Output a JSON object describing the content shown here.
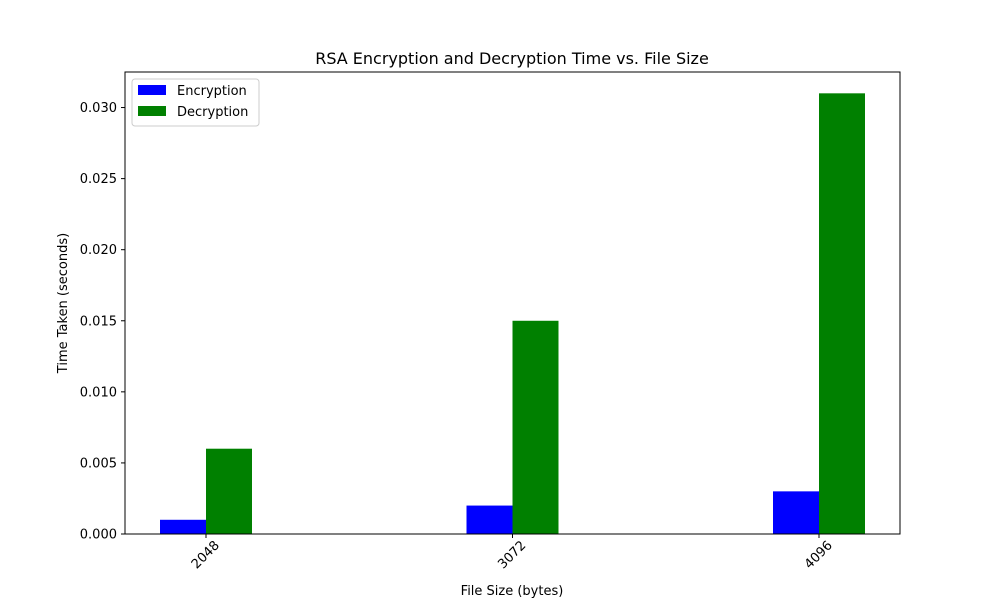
{
  "chart_data": {
    "type": "bar",
    "title": "RSA Encryption and Decryption Time vs. File Size",
    "xlabel": "File Size (bytes)",
    "ylabel": "Time Taken (seconds)",
    "categories": [
      "2048",
      "3072",
      "4096"
    ],
    "series": [
      {
        "name": "Encryption",
        "color": "#0000ff",
        "values": [
          0.001,
          0.002,
          0.003
        ]
      },
      {
        "name": "Decryption",
        "color": "#008000",
        "values": [
          0.006,
          0.015,
          0.031
        ]
      }
    ],
    "ylim": [
      0,
      0.0325
    ],
    "yticks": [
      "0.000",
      "0.005",
      "0.010",
      "0.015",
      "0.020",
      "0.025",
      "0.030"
    ],
    "legend_position": "top-left",
    "grid": false
  }
}
